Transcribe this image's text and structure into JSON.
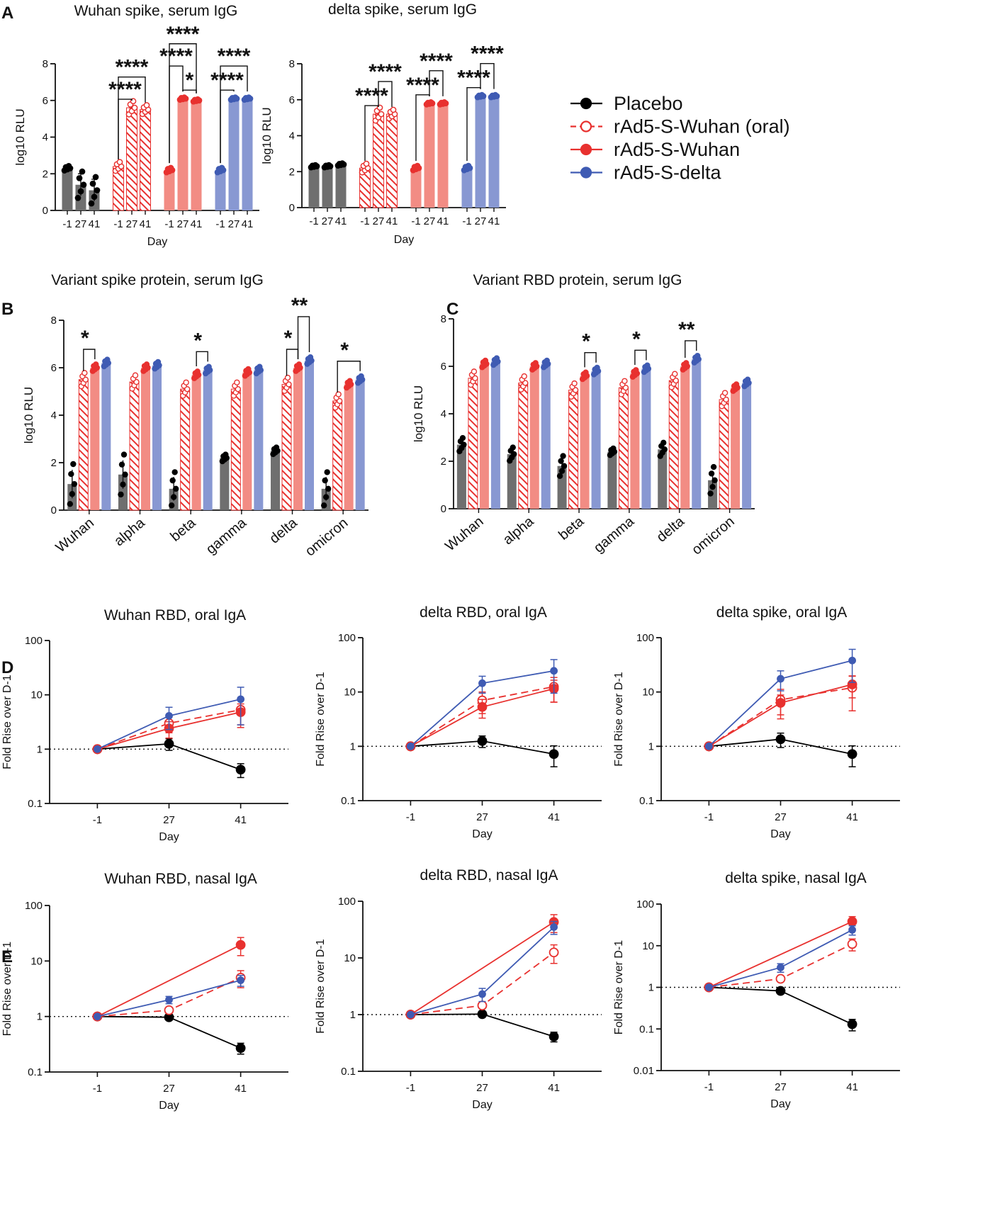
{
  "colors": {
    "placebo": "#000000",
    "oral": "#e8312f",
    "wuhan": "#e8312f",
    "delta": "#3f5bb3",
    "placeboBar": "#6f6f6f",
    "wuhanBar": "#f28c84",
    "deltaBar": "#8898d2"
  },
  "legend": [
    {
      "key": "placebo",
      "label": "Placebo",
      "dashed": false,
      "open": false
    },
    {
      "key": "oral",
      "label": "rAd5-S-Wuhan (oral)",
      "dashed": true,
      "open": true
    },
    {
      "key": "wuhan",
      "label": "rAd5-S-Wuhan",
      "dashed": false,
      "open": false
    },
    {
      "key": "delta",
      "label": "rAd5-S-delta",
      "dashed": false,
      "open": false
    }
  ],
  "panel_letters": [
    "A",
    "B",
    "C",
    "D",
    "E"
  ],
  "chart_data": [
    {
      "id": "A1",
      "panel": "A",
      "type": "bar",
      "title": "Wuhan spike, serum IgG",
      "xlabel": "Day",
      "ylabel": "log10 RLU",
      "ylim": [
        0,
        8
      ],
      "yticks": [
        0,
        2,
        4,
        6,
        8
      ],
      "days": [
        "-1",
        "27",
        "41"
      ],
      "groups": [
        {
          "key": "placebo",
          "values": [
            2.3,
            1.4,
            1.1
          ],
          "errors": [
            0.1,
            0.6,
            0.6
          ]
        },
        {
          "key": "oral",
          "values": [
            2.4,
            5.6,
            5.5
          ],
          "errors": [
            0.2,
            0.3,
            0.2
          ]
        },
        {
          "key": "wuhan",
          "values": [
            2.2,
            6.1,
            6.0
          ],
          "errors": [
            0.1,
            0.05,
            0.05
          ]
        },
        {
          "key": "delta",
          "values": [
            2.2,
            6.1,
            6.1
          ],
          "errors": [
            0.1,
            0.05,
            0.05
          ]
        }
      ],
      "significance": [
        {
          "group": 1,
          "from": 0,
          "to": 1,
          "label": "****",
          "level": 0
        },
        {
          "group": 1,
          "from": 0,
          "to": 2,
          "label": "****",
          "level": 1
        },
        {
          "group": 2,
          "from": 0,
          "to": 1,
          "label": "****",
          "level": 1
        },
        {
          "group": 2,
          "from": 1,
          "to": 2,
          "label": "*",
          "level": 0
        },
        {
          "group": 2,
          "from": 0,
          "to": 2,
          "label": "****",
          "level": 2
        },
        {
          "group": 3,
          "from": 0,
          "to": 1,
          "label": "****",
          "level": 0
        },
        {
          "group": 3,
          "from": 0,
          "to": 2,
          "label": "****",
          "level": 1
        }
      ]
    },
    {
      "id": "A2",
      "panel": "A",
      "type": "bar",
      "title": "delta spike, serum IgG",
      "xlabel": "Day",
      "ylabel": "log10 RLU",
      "ylim": [
        0,
        8
      ],
      "yticks": [
        0,
        2,
        4,
        6,
        8
      ],
      "days": [
        "-1",
        "27",
        "41"
      ],
      "groups": [
        {
          "key": "placebo",
          "values": [
            2.3,
            2.3,
            2.4
          ],
          "errors": [
            0.05,
            0.05,
            0.05
          ]
        },
        {
          "key": "oral",
          "values": [
            2.2,
            5.2,
            5.2
          ],
          "errors": [
            0.2,
            0.3,
            0.2
          ]
        },
        {
          "key": "wuhan",
          "values": [
            2.2,
            5.8,
            5.8
          ],
          "errors": [
            0.1,
            0.05,
            0.05
          ]
        },
        {
          "key": "delta",
          "values": [
            2.2,
            6.2,
            6.2
          ],
          "errors": [
            0.1,
            0.05,
            0.05
          ]
        }
      ],
      "significance": [
        {
          "group": 1,
          "from": 0,
          "to": 1,
          "label": "****",
          "level": 0
        },
        {
          "group": 1,
          "from": 1,
          "to": 2,
          "label": "****",
          "level": 1
        },
        {
          "group": 2,
          "from": 0,
          "to": 1,
          "label": "****",
          "level": 0
        },
        {
          "group": 2,
          "from": 1,
          "to": 2,
          "label": "****",
          "level": 1
        },
        {
          "group": 3,
          "from": 0,
          "to": 1,
          "label": "****",
          "level": 0
        },
        {
          "group": 3,
          "from": 1,
          "to": 2,
          "label": "****",
          "level": 1
        }
      ]
    },
    {
      "id": "B",
      "panel": "B",
      "type": "bar",
      "title": "Variant spike protein, serum IgG",
      "ylabel": "log10 RLU",
      "ylim": [
        0,
        8
      ],
      "yticks": [
        0,
        2,
        4,
        6,
        8
      ],
      "categories": [
        "Wuhan",
        "alpha",
        "beta",
        "gamma",
        "delta",
        "omicron"
      ],
      "series": [
        {
          "key": "placebo",
          "values": [
            1.1,
            1.5,
            0.9,
            2.2,
            2.5,
            0.9
          ],
          "errors": [
            0.6,
            0.6,
            0.5,
            0.1,
            0.05,
            0.5
          ]
        },
        {
          "key": "oral",
          "values": [
            5.5,
            5.4,
            5.1,
            5.1,
            5.3,
            4.6
          ],
          "errors": [
            0.2,
            0.2,
            0.2,
            0.2,
            0.2,
            0.2
          ]
        },
        {
          "key": "wuhan",
          "values": [
            6.0,
            6.0,
            5.7,
            5.8,
            6.0,
            5.3
          ],
          "errors": [
            0.05,
            0.05,
            0.05,
            0.05,
            0.05,
            0.05
          ]
        },
        {
          "key": "delta",
          "values": [
            6.2,
            6.1,
            5.9,
            5.9,
            6.3,
            5.5
          ],
          "errors": [
            0.05,
            0.05,
            0.05,
            0.05,
            0.05,
            0.05
          ]
        }
      ],
      "significance": [
        {
          "category": 0,
          "from": 1,
          "to": 2,
          "label": "*",
          "level": 0
        },
        {
          "category": 2,
          "from": 2,
          "to": 3,
          "label": "*",
          "level": 0
        },
        {
          "category": 4,
          "from": 1,
          "to": 2,
          "label": "*",
          "level": 0
        },
        {
          "category": 4,
          "from": 2,
          "to": 3,
          "label": "**",
          "level": 1
        },
        {
          "category": 5,
          "from": 1,
          "to": 3,
          "label": "*",
          "level": 0
        }
      ]
    },
    {
      "id": "C",
      "panel": "C",
      "type": "bar",
      "title": "Variant RBD protein, serum IgG",
      "ylabel": "log10 RLU",
      "ylim": [
        0,
        8
      ],
      "yticks": [
        0,
        2,
        4,
        6,
        8
      ],
      "categories": [
        "Wuhan",
        "alpha",
        "beta",
        "gamma",
        "delta",
        "omicron"
      ],
      "series": [
        {
          "key": "placebo",
          "values": [
            2.7,
            2.3,
            1.8,
            2.4,
            2.5,
            1.2
          ],
          "errors": [
            0.2,
            0.2,
            0.3,
            0.1,
            0.2,
            0.4
          ]
        },
        {
          "key": "oral",
          "values": [
            5.5,
            5.3,
            5.0,
            5.1,
            5.4,
            4.6
          ],
          "errors": [
            0.2,
            0.2,
            0.2,
            0.2,
            0.2,
            0.2
          ]
        },
        {
          "key": "wuhan",
          "values": [
            6.1,
            6.0,
            5.6,
            5.7,
            6.0,
            5.1
          ],
          "errors": [
            0.05,
            0.05,
            0.05,
            0.05,
            0.05,
            0.05
          ]
        },
        {
          "key": "delta",
          "values": [
            6.2,
            6.1,
            5.8,
            5.9,
            6.3,
            5.3
          ],
          "errors": [
            0.05,
            0.05,
            0.05,
            0.05,
            0.05,
            0.05
          ]
        }
      ],
      "significance": [
        {
          "category": 2,
          "from": 2,
          "to": 3,
          "label": "*",
          "level": 0
        },
        {
          "category": 3,
          "from": 2,
          "to": 3,
          "label": "*",
          "level": 0
        },
        {
          "category": 4,
          "from": 2,
          "to": 3,
          "label": "**",
          "level": 0
        }
      ]
    },
    {
      "id": "D1",
      "panel": "D",
      "type": "line",
      "title": "Wuhan RBD, oral IgA",
      "xlabel": "Day",
      "ylabel": "Fold Rise over D-1",
      "x": [
        "-1",
        "27",
        "41"
      ],
      "yscale": "log",
      "ylim": [
        0.1,
        100
      ],
      "yticks": [
        "0.1",
        "1",
        "10",
        "100"
      ],
      "reference_line": 1,
      "series": [
        {
          "key": "placebo",
          "values": [
            1,
            1.25,
            0.42
          ],
          "errors": [
            0,
            0.3,
            0.12
          ]
        },
        {
          "key": "oral",
          "values": [
            1,
            3.0,
            5.3
          ],
          "errors": [
            0,
            1.0,
            2.8
          ]
        },
        {
          "key": "wuhan",
          "values": [
            1,
            2.4,
            4.8
          ],
          "errors": [
            0,
            0.8,
            2.0
          ]
        },
        {
          "key": "delta",
          "values": [
            1,
            4.1,
            8.3
          ],
          "errors": [
            0,
            1.8,
            5.5
          ]
        }
      ]
    },
    {
      "id": "D2",
      "panel": "D",
      "type": "line",
      "title": "delta RBD, oral IgA",
      "xlabel": "Day",
      "ylabel": "Fold Rise over D-1",
      "x": [
        "-1",
        "27",
        "41"
      ],
      "yscale": "log",
      "ylim": [
        0.1,
        100
      ],
      "yticks": [
        "0.1",
        "1",
        "10",
        "100"
      ],
      "reference_line": 1,
      "series": [
        {
          "key": "placebo",
          "values": [
            1,
            1.25,
            0.72
          ],
          "errors": [
            0,
            0.3,
            0.3
          ]
        },
        {
          "key": "oral",
          "values": [
            1,
            7.0,
            12.5
          ],
          "errors": [
            0,
            3.0,
            6.0
          ]
        },
        {
          "key": "wuhan",
          "values": [
            1,
            5.3,
            11.5
          ],
          "errors": [
            0,
            2.0,
            5.0
          ]
        },
        {
          "key": "delta",
          "values": [
            1,
            14.5,
            24.5
          ],
          "errors": [
            0,
            5.0,
            15.0
          ]
        }
      ]
    },
    {
      "id": "D3",
      "panel": "D",
      "type": "line",
      "title": "delta spike, oral IgA",
      "xlabel": "Day",
      "ylabel": "Fold Rise over D-1",
      "x": [
        "-1",
        "27",
        "41"
      ],
      "yscale": "log",
      "ylim": [
        0.1,
        100
      ],
      "yticks": [
        "0.1",
        "1",
        "10",
        "100"
      ],
      "reference_line": 1,
      "series": [
        {
          "key": "placebo",
          "values": [
            1,
            1.35,
            0.72
          ],
          "errors": [
            0,
            0.4,
            0.3
          ]
        },
        {
          "key": "oral",
          "values": [
            1,
            7.2,
            12.0
          ],
          "errors": [
            0,
            4.0,
            7.5
          ]
        },
        {
          "key": "wuhan",
          "values": [
            1,
            6.3,
            13.8
          ],
          "errors": [
            0,
            2.5,
            6.0
          ]
        },
        {
          "key": "delta",
          "values": [
            1,
            17.5,
            38.0
          ],
          "errors": [
            0,
            7.0,
            23.0
          ]
        }
      ]
    },
    {
      "id": "E1",
      "panel": "E",
      "type": "line",
      "title": "Wuhan RBD, nasal IgA",
      "xlabel": "Day",
      "ylabel": "Fold Rise over D-1",
      "x": [
        "-1",
        "27",
        "41"
      ],
      "yscale": "log",
      "ylim": [
        0.1,
        100
      ],
      "yticks": [
        "0.1",
        "1",
        "10",
        "100"
      ],
      "reference_line": 1,
      "series": [
        {
          "key": "placebo",
          "values": [
            1,
            0.97,
            0.27
          ],
          "errors": [
            0,
            0.05,
            0.06
          ]
        },
        {
          "key": "oral",
          "values": [
            1,
            1.3,
            5.0
          ],
          "errors": [
            0,
            0.1,
            1.7
          ]
        },
        {
          "key": "wuhan",
          "values": [
            1,
            null,
            19.5
          ],
          "errors": [
            0,
            0,
            7.0
          ]
        },
        {
          "key": "delta",
          "values": [
            1,
            2.0,
            4.5
          ],
          "errors": [
            0,
            0.3,
            1.0
          ]
        }
      ]
    },
    {
      "id": "E2",
      "panel": "E",
      "type": "line",
      "title": "delta RBD, nasal IgA",
      "xlabel": "Day",
      "ylabel": "Fold Rise over D-1",
      "x": [
        "-1",
        "27",
        "41"
      ],
      "yscale": "log",
      "ylim": [
        0.1,
        100
      ],
      "yticks": [
        "0.1",
        "1",
        "10",
        "100"
      ],
      "reference_line": 1,
      "series": [
        {
          "key": "placebo",
          "values": [
            1,
            1.02,
            0.41
          ],
          "errors": [
            0,
            0.05,
            0.08
          ]
        },
        {
          "key": "oral",
          "values": [
            1,
            1.45,
            12.5
          ],
          "errors": [
            0,
            0.15,
            4.5
          ]
        },
        {
          "key": "wuhan",
          "values": [
            1,
            null,
            43.0
          ],
          "errors": [
            0,
            0,
            15.0
          ]
        },
        {
          "key": "delta",
          "values": [
            1,
            2.3,
            35.0
          ],
          "errors": [
            0,
            0.6,
            9.0
          ]
        }
      ]
    },
    {
      "id": "E3",
      "panel": "E",
      "type": "line",
      "title": "delta spike, nasal IgA",
      "xlabel": "Day",
      "ylabel": "Fold Rise over D-1",
      "x": [
        "-1",
        "27",
        "41"
      ],
      "yscale": "log",
      "ylim": [
        0.01,
        100
      ],
      "yticks": [
        "0.01",
        "0.1",
        "1",
        "10",
        "100"
      ],
      "reference_line": 1,
      "series": [
        {
          "key": "placebo",
          "values": [
            1,
            0.82,
            0.13
          ],
          "errors": [
            0,
            0.04,
            0.04
          ]
        },
        {
          "key": "oral",
          "values": [
            1,
            1.6,
            11.0
          ],
          "errors": [
            0,
            0.15,
            3.5
          ]
        },
        {
          "key": "wuhan",
          "values": [
            1,
            null,
            38.0
          ],
          "errors": [
            0,
            0,
            12.0
          ]
        },
        {
          "key": "delta",
          "values": [
            1,
            3.0,
            24.0
          ],
          "errors": [
            0,
            0.7,
            6.0
          ]
        }
      ]
    }
  ]
}
